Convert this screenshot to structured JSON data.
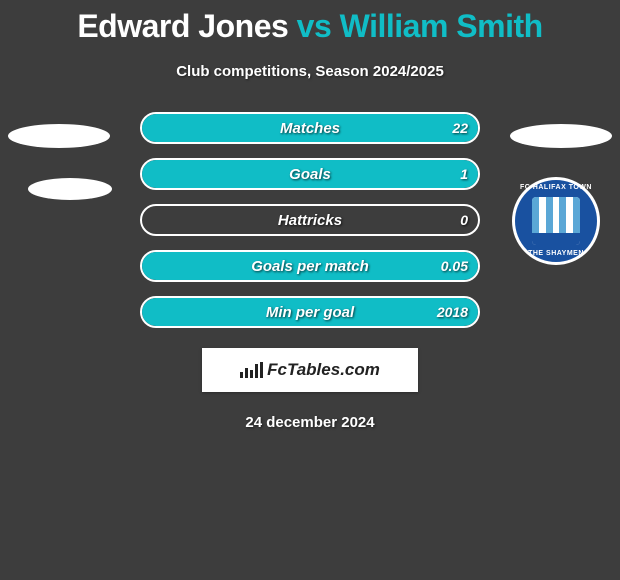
{
  "title": {
    "player1": "Edward Jones",
    "vs": "vs",
    "player2": "William Smith",
    "player1_color": "#ffffff",
    "vs_color": "#10bdc6",
    "player2_color": "#10bdc6",
    "fontsize": 32
  },
  "subtitle": "Club competitions, Season 2024/2025",
  "left_color": "#ee2e5a",
  "right_color": "#10bdc6",
  "bar_border_color": "#ffffff",
  "background_color": "#3d3d3d",
  "bars": [
    {
      "label": "Matches",
      "left_pct": 0,
      "right_pct": 100,
      "left_value": "",
      "right_value": "22"
    },
    {
      "label": "Goals",
      "left_pct": 0,
      "right_pct": 100,
      "left_value": "",
      "right_value": "1"
    },
    {
      "label": "Hattricks",
      "left_pct": 0,
      "right_pct": 0,
      "left_value": "",
      "right_value": "0"
    },
    {
      "label": "Goals per match",
      "left_pct": 0,
      "right_pct": 100,
      "left_value": "",
      "right_value": "0.05"
    },
    {
      "label": "Min per goal",
      "left_pct": 0,
      "right_pct": 100,
      "left_value": "",
      "right_value": "2018"
    }
  ],
  "logo_text": "FcTables.com",
  "date": "24 december 2024",
  "club_badge": {
    "top_text": "FC HALIFAX TOWN",
    "bottom_text": "THE SHAYMEN",
    "outer_color": "#1951a0",
    "stripe_color": "#5aa7d6"
  }
}
